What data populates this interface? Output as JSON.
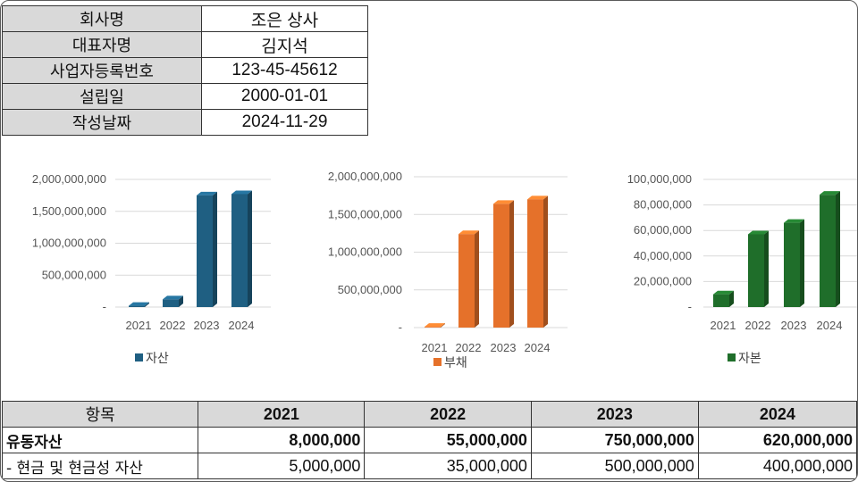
{
  "company": {
    "rows": [
      {
        "label": "회사명",
        "value": "조은 상사"
      },
      {
        "label": "대표자명",
        "value": "김지석"
      },
      {
        "label": "사업자등록번호",
        "value": "123-45-45612"
      },
      {
        "label": "설립일",
        "value": "2000-01-01"
      },
      {
        "label": "작성날짜",
        "value": "2024-11-29"
      }
    ]
  },
  "chart_data": [
    {
      "type": "bar",
      "categories": [
        "2021",
        "2022",
        "2023",
        "2024"
      ],
      "series": [
        {
          "name": "자산",
          "values": [
            20000000,
            120000000,
            1750000000,
            1770000000
          ]
        }
      ],
      "ylim": [
        0,
        2000000000
      ],
      "yticks": [
        "-",
        "500,000,000",
        "1,000,000,000",
        "1,500,000,000",
        "2,000,000,000"
      ],
      "grid": true,
      "legend": "bottom-left",
      "color": "#1f5f82"
    },
    {
      "type": "bar",
      "categories": [
        "2021",
        "2022",
        "2023",
        "2024"
      ],
      "series": [
        {
          "name": "부채",
          "values": [
            10000000,
            1240000000,
            1640000000,
            1700000000
          ]
        }
      ],
      "ylim": [
        0,
        2000000000
      ],
      "yticks": [
        "-",
        "500,000,000",
        "1,000,000,000",
        "1,500,000,000",
        "2,000,000,000"
      ],
      "grid": true,
      "legend": "bottom-left",
      "color": "#e5712a"
    },
    {
      "type": "bar",
      "categories": [
        "2021",
        "2022",
        "2023",
        "2024"
      ],
      "series": [
        {
          "name": "자본",
          "values": [
            10000000,
            57000000,
            66000000,
            88000000
          ]
        }
      ],
      "ylim": [
        0,
        100000000
      ],
      "yticks": [
        "-",
        "20,000,000",
        "40,000,000",
        "60,000,000",
        "80,000,000",
        "100,000,000"
      ],
      "grid": true,
      "legend": "bottom-left",
      "color": "#1f6e2a"
    }
  ],
  "financials": {
    "header": [
      "항목",
      "2021",
      "2022",
      "2023",
      "2024"
    ],
    "rows": [
      {
        "label": "유동자산",
        "values": [
          "8,000,000",
          "55,000,000",
          "750,000,000",
          "620,000,000"
        ],
        "bold": true
      },
      {
        "label": "- 현금 및 현금성 자산",
        "values": [
          "5,000,000",
          "35,000,000",
          "500,000,000",
          "400,000,000"
        ],
        "bold": false
      }
    ]
  }
}
